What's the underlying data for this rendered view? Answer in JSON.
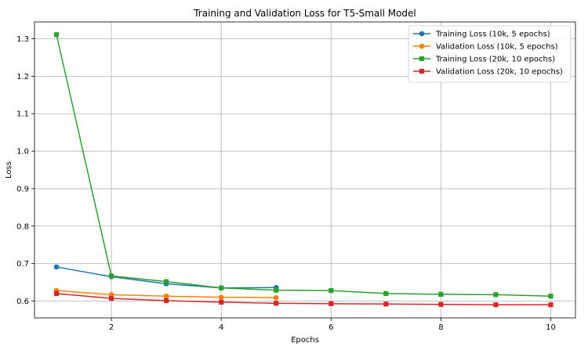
{
  "chart_data": {
    "type": "line",
    "title": "Training and Validation Loss for T5-Small Model",
    "xlabel": "Epochs",
    "ylabel": "Loss",
    "xlim": [
      0.6,
      10.45
    ],
    "ylim": [
      0.555,
      1.345
    ],
    "xticks": [
      2,
      4,
      6,
      8,
      10
    ],
    "yticks": [
      0.6,
      0.7,
      0.8,
      0.9,
      1.0,
      1.1,
      1.2,
      1.3
    ],
    "ytick_labels": [
      "0.6",
      "0.7",
      "0.8",
      "0.9",
      "1.0",
      "1.1",
      "1.2",
      "1.3"
    ],
    "grid": true,
    "legend_position": "top-right",
    "series": [
      {
        "name": "Training Loss (10k, 5 epochs)",
        "color": "#1f77b4",
        "marker": "circle",
        "x": [
          1,
          2,
          3,
          4,
          5
        ],
        "y": [
          0.691,
          0.665,
          0.646,
          0.635,
          0.636
        ]
      },
      {
        "name": "Validation Loss (10k, 5 epochs)",
        "color": "#ff7f0e",
        "marker": "circle",
        "x": [
          1,
          2,
          3,
          4,
          5
        ],
        "y": [
          0.628,
          0.617,
          0.613,
          0.61,
          0.609
        ]
      },
      {
        "name": "Training Loss (20k, 10 epochs)",
        "color": "#2ca02c",
        "marker": "square",
        "x": [
          1,
          2,
          3,
          4,
          5,
          6,
          7,
          8,
          9,
          10
        ],
        "y": [
          1.311,
          0.667,
          0.652,
          0.635,
          0.629,
          0.628,
          0.62,
          0.618,
          0.617,
          0.613
        ]
      },
      {
        "name": "Validation Loss (20k, 10 epochs)",
        "color": "#d62728",
        "marker": "square",
        "x": [
          1,
          2,
          3,
          4,
          5,
          6,
          7,
          8,
          9,
          10
        ],
        "y": [
          0.62,
          0.607,
          0.601,
          0.597,
          0.594,
          0.593,
          0.592,
          0.591,
          0.59,
          0.59
        ]
      }
    ]
  }
}
